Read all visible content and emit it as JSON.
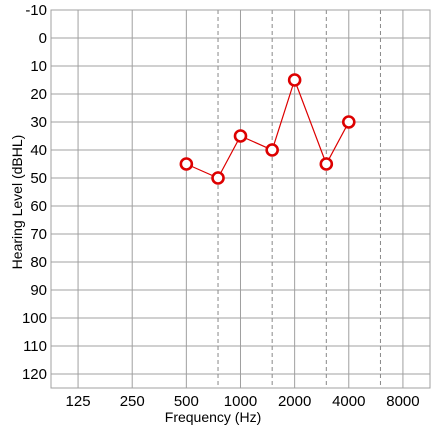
{
  "chart_data": {
    "type": "line",
    "xlabel": "Frequency (Hz)",
    "ylabel": "Hearing Level (dBHL)",
    "x_scale": "log2",
    "x_ticks": [
      125,
      250,
      500,
      1000,
      2000,
      4000,
      8000
    ],
    "x_tick_labels": [
      "125",
      "250",
      "500",
      "1000",
      "2000",
      "4000",
      "8000"
    ],
    "x_dashed_gridlines": [
      750,
      1500,
      3000,
      6000
    ],
    "x_range": [
      88.4,
      11314
    ],
    "y_ticks": [
      -10,
      0,
      10,
      20,
      30,
      40,
      50,
      60,
      70,
      80,
      90,
      100,
      110,
      120
    ],
    "y_tick_labels": [
      "-10",
      "0",
      "10",
      "20",
      "30",
      "40",
      "50",
      "60",
      "70",
      "80",
      "90",
      "100",
      "110",
      "120"
    ],
    "y_range": [
      -10,
      125
    ],
    "y_inverted": true,
    "grid": true,
    "series": [
      {
        "x": [
          500,
          750,
          1000,
          1500,
          2000,
          3000,
          4000
        ],
        "y": [
          45,
          50,
          35,
          40,
          15,
          45,
          30
        ]
      }
    ],
    "colors": {
      "series": "#dd0000",
      "grid": "#a0a0a0",
      "dashed_grid": "#888888",
      "frame": "#a0a0a0"
    }
  }
}
